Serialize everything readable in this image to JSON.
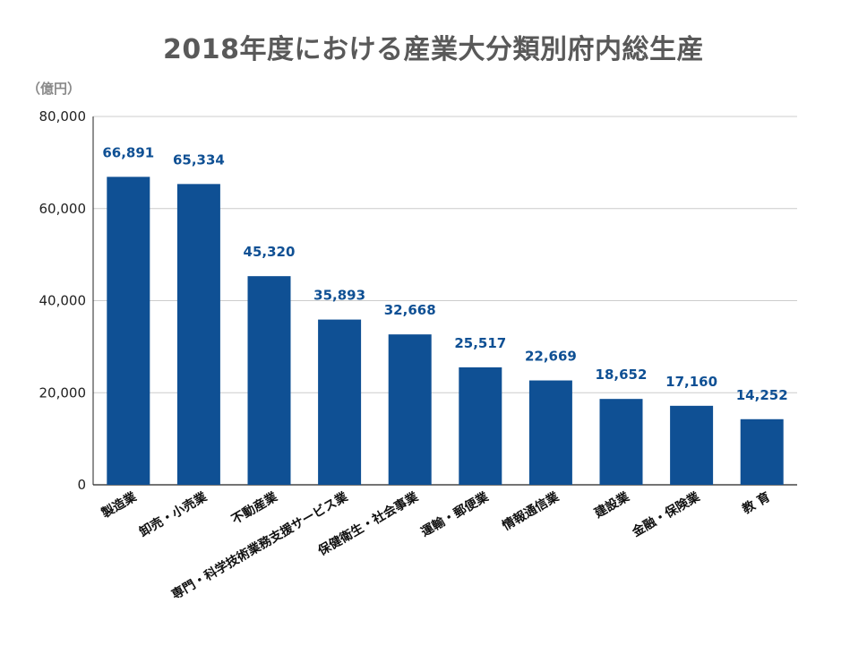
{
  "chart_data": {
    "type": "bar",
    "title": "2018年度における産業大分類別府内総生産",
    "ylabel": "（億円）",
    "xlabel": "",
    "ylim": [
      0,
      80000
    ],
    "yticks": [
      0,
      20000,
      40000,
      60000,
      80000
    ],
    "yticks_labels": [
      "0",
      "20,000",
      "40,000",
      "60,000",
      "80,000"
    ],
    "categories": [
      "製造業",
      "卸売・小売業",
      "不動産業",
      "専門・科学技術業務支援サービス業",
      "保健衛生・社会事業",
      "運輸・郵便業",
      "情報通信業",
      "建設業",
      "金融・保険業",
      "教 育"
    ],
    "values": [
      66891,
      65334,
      45320,
      35893,
      32668,
      25517,
      22669,
      18652,
      17160,
      14252
    ],
    "value_labels": [
      "66,891",
      "65,334",
      "45,320",
      "35,893",
      "32,668",
      "25,517",
      "22,669",
      "18,652",
      "17,160",
      "14,252"
    ],
    "grid": true,
    "legend": "none",
    "colors": {
      "bar": "#0f5094",
      "data_label": "#0f5094",
      "grid": "#cccccc",
      "axis": "#222222"
    }
  }
}
